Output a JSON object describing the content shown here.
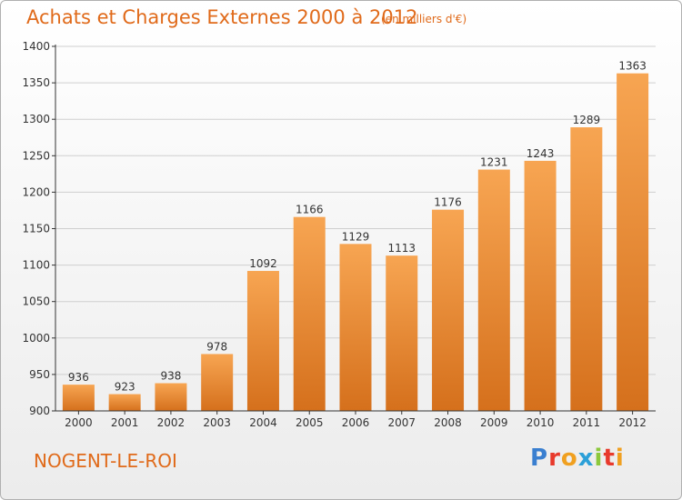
{
  "header": {
    "title": "Achats et Charges Externes 2000 à 2012",
    "subtitle": "(en milliers d'€)"
  },
  "footer": {
    "commune": "NOGENT-LE-ROI",
    "logo": {
      "text": "Proxiti",
      "letters": [
        {
          "ch": "P",
          "color": "#3a7fd0"
        },
        {
          "ch": "r",
          "color": "#e83a2c"
        },
        {
          "ch": "o",
          "color": "#f0a020"
        },
        {
          "ch": "x",
          "color": "#2ca0d8"
        },
        {
          "ch": "i",
          "color": "#8cc83c"
        },
        {
          "ch": "t",
          "color": "#e83a2c"
        },
        {
          "ch": "i",
          "color": "#f0a020"
        }
      ]
    }
  },
  "colors": {
    "title": "#e06a1a",
    "bar_top": "#f7a552",
    "bar_bottom": "#d5701c",
    "axis": "#333333",
    "grid": "#cfcfcf"
  },
  "chart_data": {
    "type": "bar",
    "categories": [
      "2000",
      "2001",
      "2002",
      "2003",
      "2004",
      "2005",
      "2006",
      "2007",
      "2008",
      "2009",
      "2010",
      "2011",
      "2012"
    ],
    "values": [
      936,
      923,
      938,
      978,
      1092,
      1166,
      1129,
      1113,
      1176,
      1231,
      1243,
      1289,
      1363
    ],
    "y_ticks": [
      900,
      950,
      1000,
      1050,
      1100,
      1150,
      1200,
      1250,
      1300,
      1350,
      1400
    ],
    "ylim": [
      900,
      1400
    ],
    "grid": true,
    "data_labels": true
  }
}
